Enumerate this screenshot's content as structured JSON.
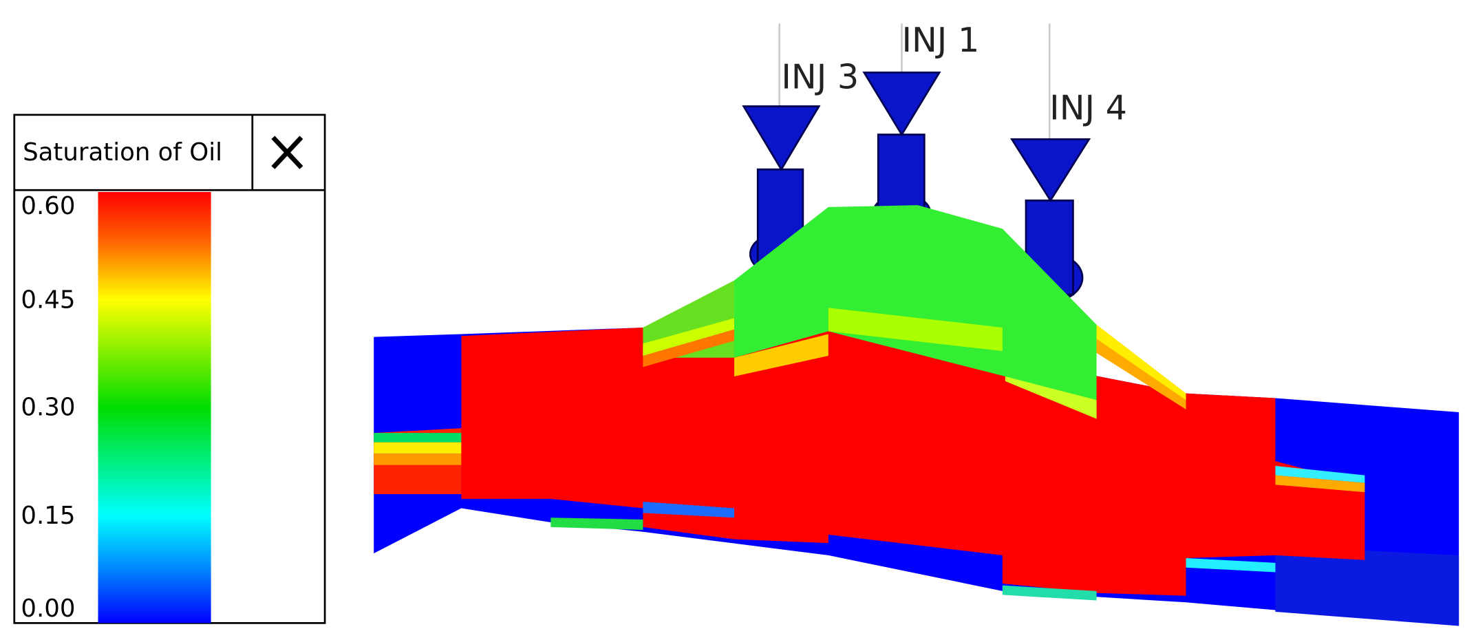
{
  "legend": {
    "title": "Saturation of Oil",
    "ticks": [
      "0.60",
      "0.45",
      "0.30",
      "0.15",
      "0.00"
    ]
  },
  "wells": [
    {
      "label": "INJ 3"
    },
    {
      "label": "INJ 1"
    },
    {
      "label": "INJ 4"
    }
  ]
}
